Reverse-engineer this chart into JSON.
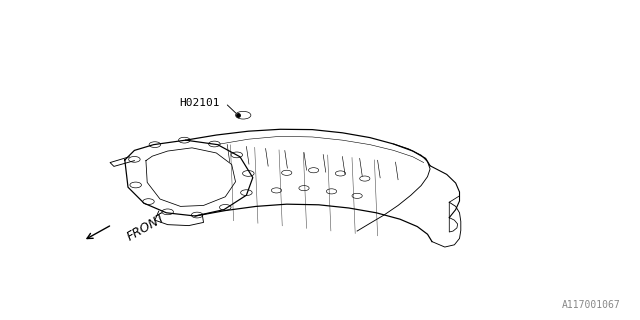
{
  "bg_color": "#ffffff",
  "line_color": "#000000",
  "label_h02101": "H02101",
  "label_front": "FRONT",
  "part_number": "A117001067",
  "font_size_labels": 8,
  "font_size_part": 7
}
